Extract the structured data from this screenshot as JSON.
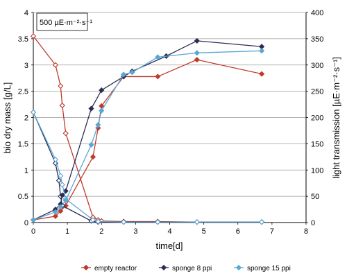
{
  "chart_data": {
    "type": "line",
    "annotation": "500 µE·m⁻²·s⁻¹",
    "xlabel": "time[d]",
    "ylabel_left": "bio dry mass [g/L]",
    "ylabel_right": "light transmission [µE·m⁻²·s⁻¹]",
    "xlim": [
      0,
      8
    ],
    "ylim_left": [
      0,
      4
    ],
    "ylim_right": [
      0,
      400
    ],
    "xticks": [
      "0",
      "1",
      "2",
      "3",
      "4",
      "5",
      "6",
      "7",
      "8"
    ],
    "yticks_left": [
      "0",
      "0.5",
      "1",
      "1.5",
      "2",
      "2.5",
      "3",
      "3.5",
      "4"
    ],
    "yticks_right": [
      "0",
      "50",
      "100",
      "150",
      "200",
      "250",
      "300",
      "350",
      "400"
    ],
    "grid": "horizontal",
    "legend_position": "bottom",
    "series": [
      {
        "name": "empty reactor",
        "color": "#c0392b",
        "biomass": {
          "x": [
            0,
            0.65,
            0.8,
            0.95,
            1.75,
            1.9,
            2.0,
            2.65,
            3.65,
            4.8,
            6.7
          ],
          "y": [
            0.05,
            0.12,
            0.22,
            0.32,
            1.25,
            1.8,
            2.22,
            2.78,
            2.78,
            3.1,
            2.83
          ]
        },
        "light": {
          "x": [
            0,
            0.65,
            0.8,
            0.85,
            0.95,
            1.75,
            1.9,
            2.0,
            2.65,
            3.65,
            4.8,
            6.7
          ],
          "y": [
            355,
            300,
            260,
            223,
            170,
            10,
            5,
            3,
            2,
            2,
            1,
            1
          ]
        }
      },
      {
        "name": "sponge 8 ppi",
        "color": "#2c2c54",
        "biomass": {
          "x": [
            0,
            0.65,
            0.8,
            0.85,
            0.95,
            1.7,
            2.0,
            2.65,
            2.9,
            3.9,
            4.8,
            6.7
          ],
          "y": [
            0.05,
            0.25,
            0.35,
            0.52,
            0.6,
            2.17,
            2.52,
            2.78,
            2.88,
            3.17,
            3.46,
            3.35
          ]
        },
        "light": {
          "x": [
            0,
            0.65,
            0.75,
            0.8,
            0.85,
            1.7,
            1.9,
            2.65,
            3.65,
            4.8,
            6.7
          ],
          "y": [
            210,
            113,
            80,
            50,
            32,
            3,
            1,
            1,
            1,
            1,
            1
          ]
        }
      },
      {
        "name": "sponge 15 ppi",
        "color": "#5ba7d4",
        "biomass": {
          "x": [
            0,
            0.65,
            0.8,
            0.95,
            1.7,
            1.9,
            2.0,
            2.65,
            2.9,
            3.65,
            4.8,
            6.7
          ],
          "y": [
            0.05,
            0.2,
            0.3,
            0.42,
            1.48,
            1.86,
            2.13,
            2.82,
            2.86,
            3.15,
            3.23,
            3.27
          ]
        },
        "light": {
          "x": [
            0,
            0.65,
            0.8,
            0.85,
            0.95,
            1.75,
            1.9,
            2.65,
            3.65,
            4.8,
            6.7
          ],
          "y": [
            210,
            120,
            89,
            72,
            45,
            5,
            2,
            1,
            1,
            1,
            1
          ]
        }
      }
    ]
  }
}
